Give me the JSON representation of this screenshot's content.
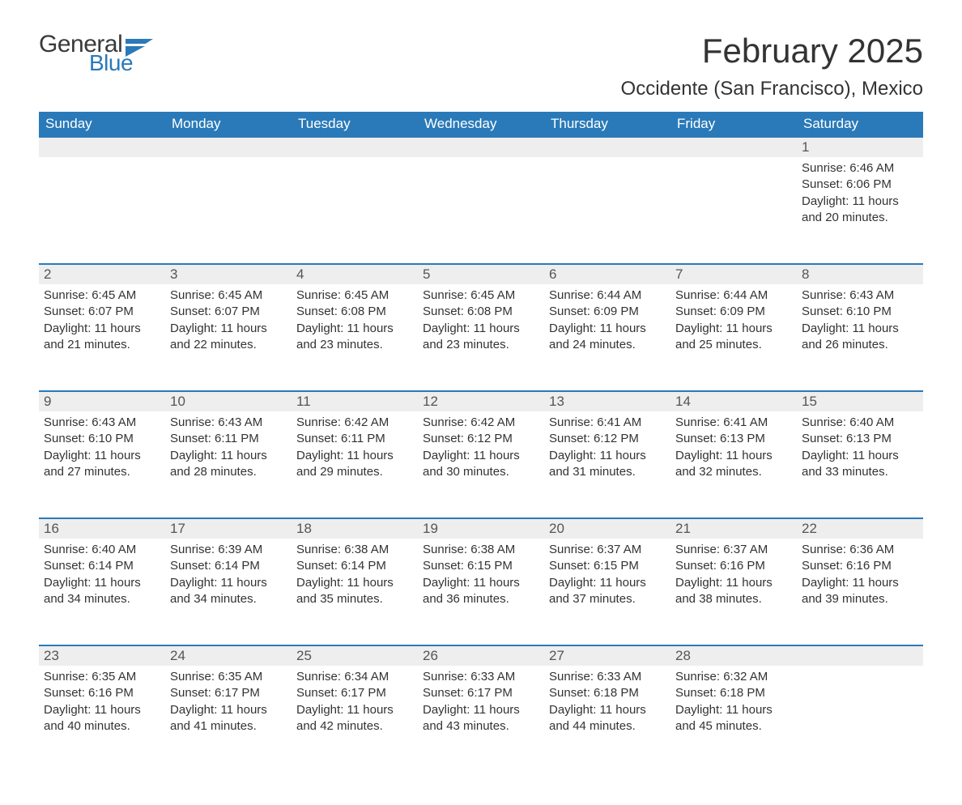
{
  "logo": {
    "text1": "General",
    "text2": "Blue",
    "brand_color": "#2a7ab9",
    "text_color": "#3a3a3a"
  },
  "title": "February 2025",
  "location": "Occidente (San Francisco), Mexico",
  "header_bg": "#2a7ab9",
  "header_text_color": "#ffffff",
  "daynum_bg": "#eeeeee",
  "row_border_color": "#2a7ab9",
  "body_text_color": "#333333",
  "background_color": "#ffffff",
  "font_family": "Segoe UI",
  "title_fontsize": 42,
  "location_fontsize": 24,
  "header_fontsize": 17,
  "body_fontsize": 15,
  "weekdays": [
    "Sunday",
    "Monday",
    "Tuesday",
    "Wednesday",
    "Thursday",
    "Friday",
    "Saturday"
  ],
  "weeks": [
    [
      null,
      null,
      null,
      null,
      null,
      null,
      {
        "n": "1",
        "sunrise": "6:46 AM",
        "sunset": "6:06 PM",
        "daylight": "11 hours and 20 minutes."
      }
    ],
    [
      {
        "n": "2",
        "sunrise": "6:45 AM",
        "sunset": "6:07 PM",
        "daylight": "11 hours and 21 minutes."
      },
      {
        "n": "3",
        "sunrise": "6:45 AM",
        "sunset": "6:07 PM",
        "daylight": "11 hours and 22 minutes."
      },
      {
        "n": "4",
        "sunrise": "6:45 AM",
        "sunset": "6:08 PM",
        "daylight": "11 hours and 23 minutes."
      },
      {
        "n": "5",
        "sunrise": "6:45 AM",
        "sunset": "6:08 PM",
        "daylight": "11 hours and 23 minutes."
      },
      {
        "n": "6",
        "sunrise": "6:44 AM",
        "sunset": "6:09 PM",
        "daylight": "11 hours and 24 minutes."
      },
      {
        "n": "7",
        "sunrise": "6:44 AM",
        "sunset": "6:09 PM",
        "daylight": "11 hours and 25 minutes."
      },
      {
        "n": "8",
        "sunrise": "6:43 AM",
        "sunset": "6:10 PM",
        "daylight": "11 hours and 26 minutes."
      }
    ],
    [
      {
        "n": "9",
        "sunrise": "6:43 AM",
        "sunset": "6:10 PM",
        "daylight": "11 hours and 27 minutes."
      },
      {
        "n": "10",
        "sunrise": "6:43 AM",
        "sunset": "6:11 PM",
        "daylight": "11 hours and 28 minutes."
      },
      {
        "n": "11",
        "sunrise": "6:42 AM",
        "sunset": "6:11 PM",
        "daylight": "11 hours and 29 minutes."
      },
      {
        "n": "12",
        "sunrise": "6:42 AM",
        "sunset": "6:12 PM",
        "daylight": "11 hours and 30 minutes."
      },
      {
        "n": "13",
        "sunrise": "6:41 AM",
        "sunset": "6:12 PM",
        "daylight": "11 hours and 31 minutes."
      },
      {
        "n": "14",
        "sunrise": "6:41 AM",
        "sunset": "6:13 PM",
        "daylight": "11 hours and 32 minutes."
      },
      {
        "n": "15",
        "sunrise": "6:40 AM",
        "sunset": "6:13 PM",
        "daylight": "11 hours and 33 minutes."
      }
    ],
    [
      {
        "n": "16",
        "sunrise": "6:40 AM",
        "sunset": "6:14 PM",
        "daylight": "11 hours and 34 minutes."
      },
      {
        "n": "17",
        "sunrise": "6:39 AM",
        "sunset": "6:14 PM",
        "daylight": "11 hours and 34 minutes."
      },
      {
        "n": "18",
        "sunrise": "6:38 AM",
        "sunset": "6:14 PM",
        "daylight": "11 hours and 35 minutes."
      },
      {
        "n": "19",
        "sunrise": "6:38 AM",
        "sunset": "6:15 PM",
        "daylight": "11 hours and 36 minutes."
      },
      {
        "n": "20",
        "sunrise": "6:37 AM",
        "sunset": "6:15 PM",
        "daylight": "11 hours and 37 minutes."
      },
      {
        "n": "21",
        "sunrise": "6:37 AM",
        "sunset": "6:16 PM",
        "daylight": "11 hours and 38 minutes."
      },
      {
        "n": "22",
        "sunrise": "6:36 AM",
        "sunset": "6:16 PM",
        "daylight": "11 hours and 39 minutes."
      }
    ],
    [
      {
        "n": "23",
        "sunrise": "6:35 AM",
        "sunset": "6:16 PM",
        "daylight": "11 hours and 40 minutes."
      },
      {
        "n": "24",
        "sunrise": "6:35 AM",
        "sunset": "6:17 PM",
        "daylight": "11 hours and 41 minutes."
      },
      {
        "n": "25",
        "sunrise": "6:34 AM",
        "sunset": "6:17 PM",
        "daylight": "11 hours and 42 minutes."
      },
      {
        "n": "26",
        "sunrise": "6:33 AM",
        "sunset": "6:17 PM",
        "daylight": "11 hours and 43 minutes."
      },
      {
        "n": "27",
        "sunrise": "6:33 AM",
        "sunset": "6:18 PM",
        "daylight": "11 hours and 44 minutes."
      },
      {
        "n": "28",
        "sunrise": "6:32 AM",
        "sunset": "6:18 PM",
        "daylight": "11 hours and 45 minutes."
      },
      null
    ]
  ],
  "labels": {
    "sunrise": "Sunrise:",
    "sunset": "Sunset:",
    "daylight": "Daylight:"
  }
}
